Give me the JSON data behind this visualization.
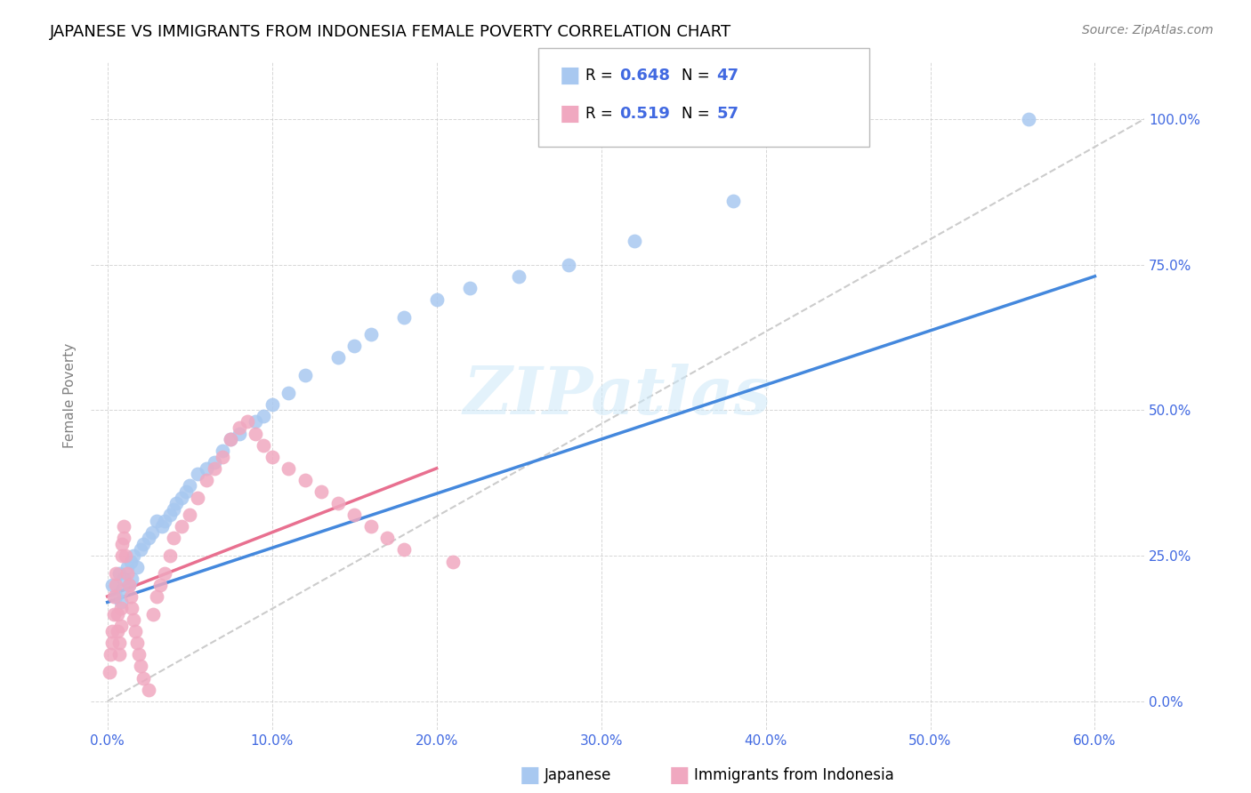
{
  "title": "JAPANESE VS IMMIGRANTS FROM INDONESIA FEMALE POVERTY CORRELATION CHART",
  "source": "Source: ZipAtlas.com",
  "xlabel_vals": [
    0.0,
    0.1,
    0.2,
    0.3,
    0.4,
    0.5,
    0.6
  ],
  "ylabel_vals": [
    0.0,
    0.25,
    0.5,
    0.75,
    1.0
  ],
  "xlim": [
    -0.01,
    0.63
  ],
  "ylim": [
    -0.05,
    1.1
  ],
  "legend_r1": "0.648",
  "legend_n1": "47",
  "legend_r2": "0.519",
  "legend_n2": "57",
  "color_japanese": "#a8c8f0",
  "color_indonesia": "#f0a8c0",
  "color_blue_text": "#4169e1",
  "color_trend_blue": "#4488dd",
  "color_trend_pink": "#e87090",
  "color_diag": "#cccccc",
  "japanese_x": [
    0.003,
    0.005,
    0.007,
    0.008,
    0.009,
    0.01,
    0.012,
    0.013,
    0.014,
    0.015,
    0.016,
    0.018,
    0.02,
    0.022,
    0.025,
    0.027,
    0.03,
    0.033,
    0.035,
    0.038,
    0.04,
    0.042,
    0.045,
    0.048,
    0.05,
    0.055,
    0.06,
    0.065,
    0.07,
    0.075,
    0.08,
    0.09,
    0.095,
    0.1,
    0.11,
    0.12,
    0.14,
    0.15,
    0.16,
    0.18,
    0.2,
    0.22,
    0.25,
    0.28,
    0.32,
    0.38,
    0.56
  ],
  "japanese_y": [
    0.2,
    0.18,
    0.22,
    0.17,
    0.19,
    0.21,
    0.23,
    0.2,
    0.24,
    0.21,
    0.25,
    0.23,
    0.26,
    0.27,
    0.28,
    0.29,
    0.31,
    0.3,
    0.31,
    0.32,
    0.33,
    0.34,
    0.35,
    0.36,
    0.37,
    0.39,
    0.4,
    0.41,
    0.43,
    0.45,
    0.46,
    0.48,
    0.49,
    0.51,
    0.53,
    0.56,
    0.59,
    0.61,
    0.63,
    0.66,
    0.69,
    0.71,
    0.73,
    0.75,
    0.79,
    0.86,
    1.0
  ],
  "indonesia_x": [
    0.001,
    0.002,
    0.003,
    0.003,
    0.004,
    0.004,
    0.005,
    0.005,
    0.006,
    0.006,
    0.007,
    0.007,
    0.008,
    0.008,
    0.009,
    0.009,
    0.01,
    0.01,
    0.011,
    0.012,
    0.013,
    0.014,
    0.015,
    0.016,
    0.017,
    0.018,
    0.019,
    0.02,
    0.022,
    0.025,
    0.028,
    0.03,
    0.032,
    0.035,
    0.038,
    0.04,
    0.045,
    0.05,
    0.055,
    0.06,
    0.065,
    0.07,
    0.075,
    0.08,
    0.085,
    0.09,
    0.095,
    0.1,
    0.11,
    0.12,
    0.13,
    0.14,
    0.15,
    0.16,
    0.17,
    0.18,
    0.21
  ],
  "indonesia_y": [
    0.05,
    0.08,
    0.1,
    0.12,
    0.15,
    0.18,
    0.2,
    0.22,
    0.15,
    0.12,
    0.1,
    0.08,
    0.13,
    0.16,
    0.25,
    0.27,
    0.3,
    0.28,
    0.25,
    0.22,
    0.2,
    0.18,
    0.16,
    0.14,
    0.12,
    0.1,
    0.08,
    0.06,
    0.04,
    0.02,
    0.15,
    0.18,
    0.2,
    0.22,
    0.25,
    0.28,
    0.3,
    0.32,
    0.35,
    0.38,
    0.4,
    0.42,
    0.45,
    0.47,
    0.48,
    0.46,
    0.44,
    0.42,
    0.4,
    0.38,
    0.36,
    0.34,
    0.32,
    0.3,
    0.28,
    0.26,
    0.24
  ],
  "blue_trend_x": [
    0.0,
    0.6
  ],
  "blue_trend_y": [
    0.17,
    0.73
  ],
  "pink_trend_x": [
    0.0,
    0.2
  ],
  "pink_trend_y": [
    0.18,
    0.4
  ]
}
